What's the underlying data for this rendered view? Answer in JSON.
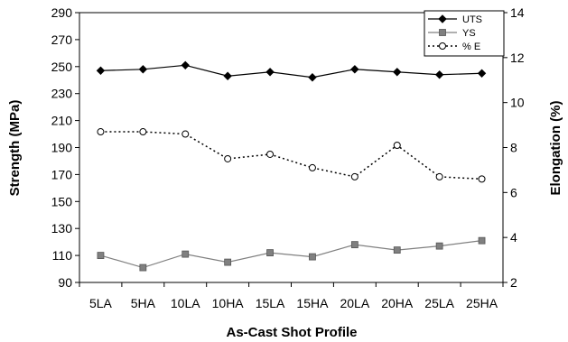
{
  "chart_data": {
    "type": "line",
    "title": "",
    "xlabel": "As-Cast Shot Profile",
    "ylabel": "Strength (MPa)",
    "y2label": "Elongation (%)",
    "categories": [
      "5LA",
      "5HA",
      "10LA",
      "10HA",
      "15LA",
      "15HA",
      "20LA",
      "20HA",
      "25LA",
      "25HA"
    ],
    "ylim": [
      90,
      290
    ],
    "yticks": [
      90,
      110,
      130,
      150,
      170,
      190,
      210,
      230,
      250,
      270,
      290
    ],
    "y2lim": [
      2,
      14
    ],
    "y2ticks": [
      2,
      4,
      6,
      8,
      10,
      12,
      14
    ],
    "grid": false,
    "legend": "top-right",
    "series": [
      {
        "name": "UTS",
        "axis": "left",
        "values": [
          247,
          248,
          251,
          243,
          246,
          242,
          248,
          246,
          244,
          245
        ],
        "color": "#000000",
        "marker": "diamond",
        "line": "solid"
      },
      {
        "name": "YS",
        "axis": "left",
        "values": [
          110,
          101,
          111,
          105,
          112,
          109,
          118,
          114,
          117,
          121
        ],
        "color": "#808080",
        "marker": "square",
        "line": "solid"
      },
      {
        "name": "% E",
        "axis": "right",
        "values": [
          8.7,
          8.7,
          8.6,
          7.5,
          7.7,
          7.1,
          6.7,
          8.1,
          6.7,
          6.6
        ],
        "color": "#000000",
        "marker": "circle",
        "line": "dotted"
      }
    ]
  }
}
